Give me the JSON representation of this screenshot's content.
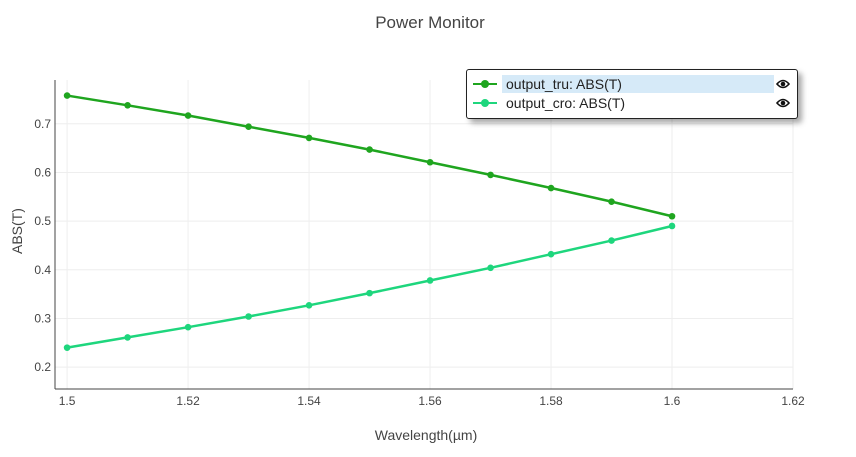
{
  "title": "Power Monitor",
  "chart_data": {
    "type": "line",
    "title": "Power Monitor",
    "xlabel": "Wavelength(µm)",
    "ylabel": "ABS(T)",
    "xlim": [
      1.498,
      1.62
    ],
    "ylim": [
      0.155,
      0.79
    ],
    "x_ticks": [
      "1.5",
      "1.52",
      "1.54",
      "1.56",
      "1.58",
      "1.6",
      "1.62"
    ],
    "x_tick_values": [
      1.5,
      1.52,
      1.54,
      1.56,
      1.58,
      1.6,
      1.62
    ],
    "y_ticks": [
      "0.2",
      "0.3",
      "0.4",
      "0.5",
      "0.6",
      "0.7"
    ],
    "y_tick_values": [
      0.2,
      0.3,
      0.4,
      0.5,
      0.6,
      0.7
    ],
    "grid": true,
    "legend_position": "top-right",
    "x": [
      1.5,
      1.51,
      1.52,
      1.53,
      1.54,
      1.55,
      1.56,
      1.57,
      1.58,
      1.59,
      1.6
    ],
    "series": [
      {
        "name": "output_tru: ABS(T)",
        "color": "#1fa51f",
        "values": [
          0.758,
          0.738,
          0.717,
          0.694,
          0.671,
          0.647,
          0.621,
          0.595,
          0.568,
          0.54,
          0.51
        ]
      },
      {
        "name": "output_cro: ABS(T)",
        "color": "#1ed67d",
        "values": [
          0.24,
          0.261,
          0.282,
          0.304,
          0.327,
          0.352,
          0.378,
          0.404,
          0.432,
          0.46,
          0.49
        ]
      }
    ]
  },
  "legend": {
    "items": [
      {
        "label": "output_tru: ABS(T)",
        "icon": "eye-icon"
      },
      {
        "label": "output_cro: ABS(T)",
        "icon": "eye-icon"
      }
    ]
  }
}
